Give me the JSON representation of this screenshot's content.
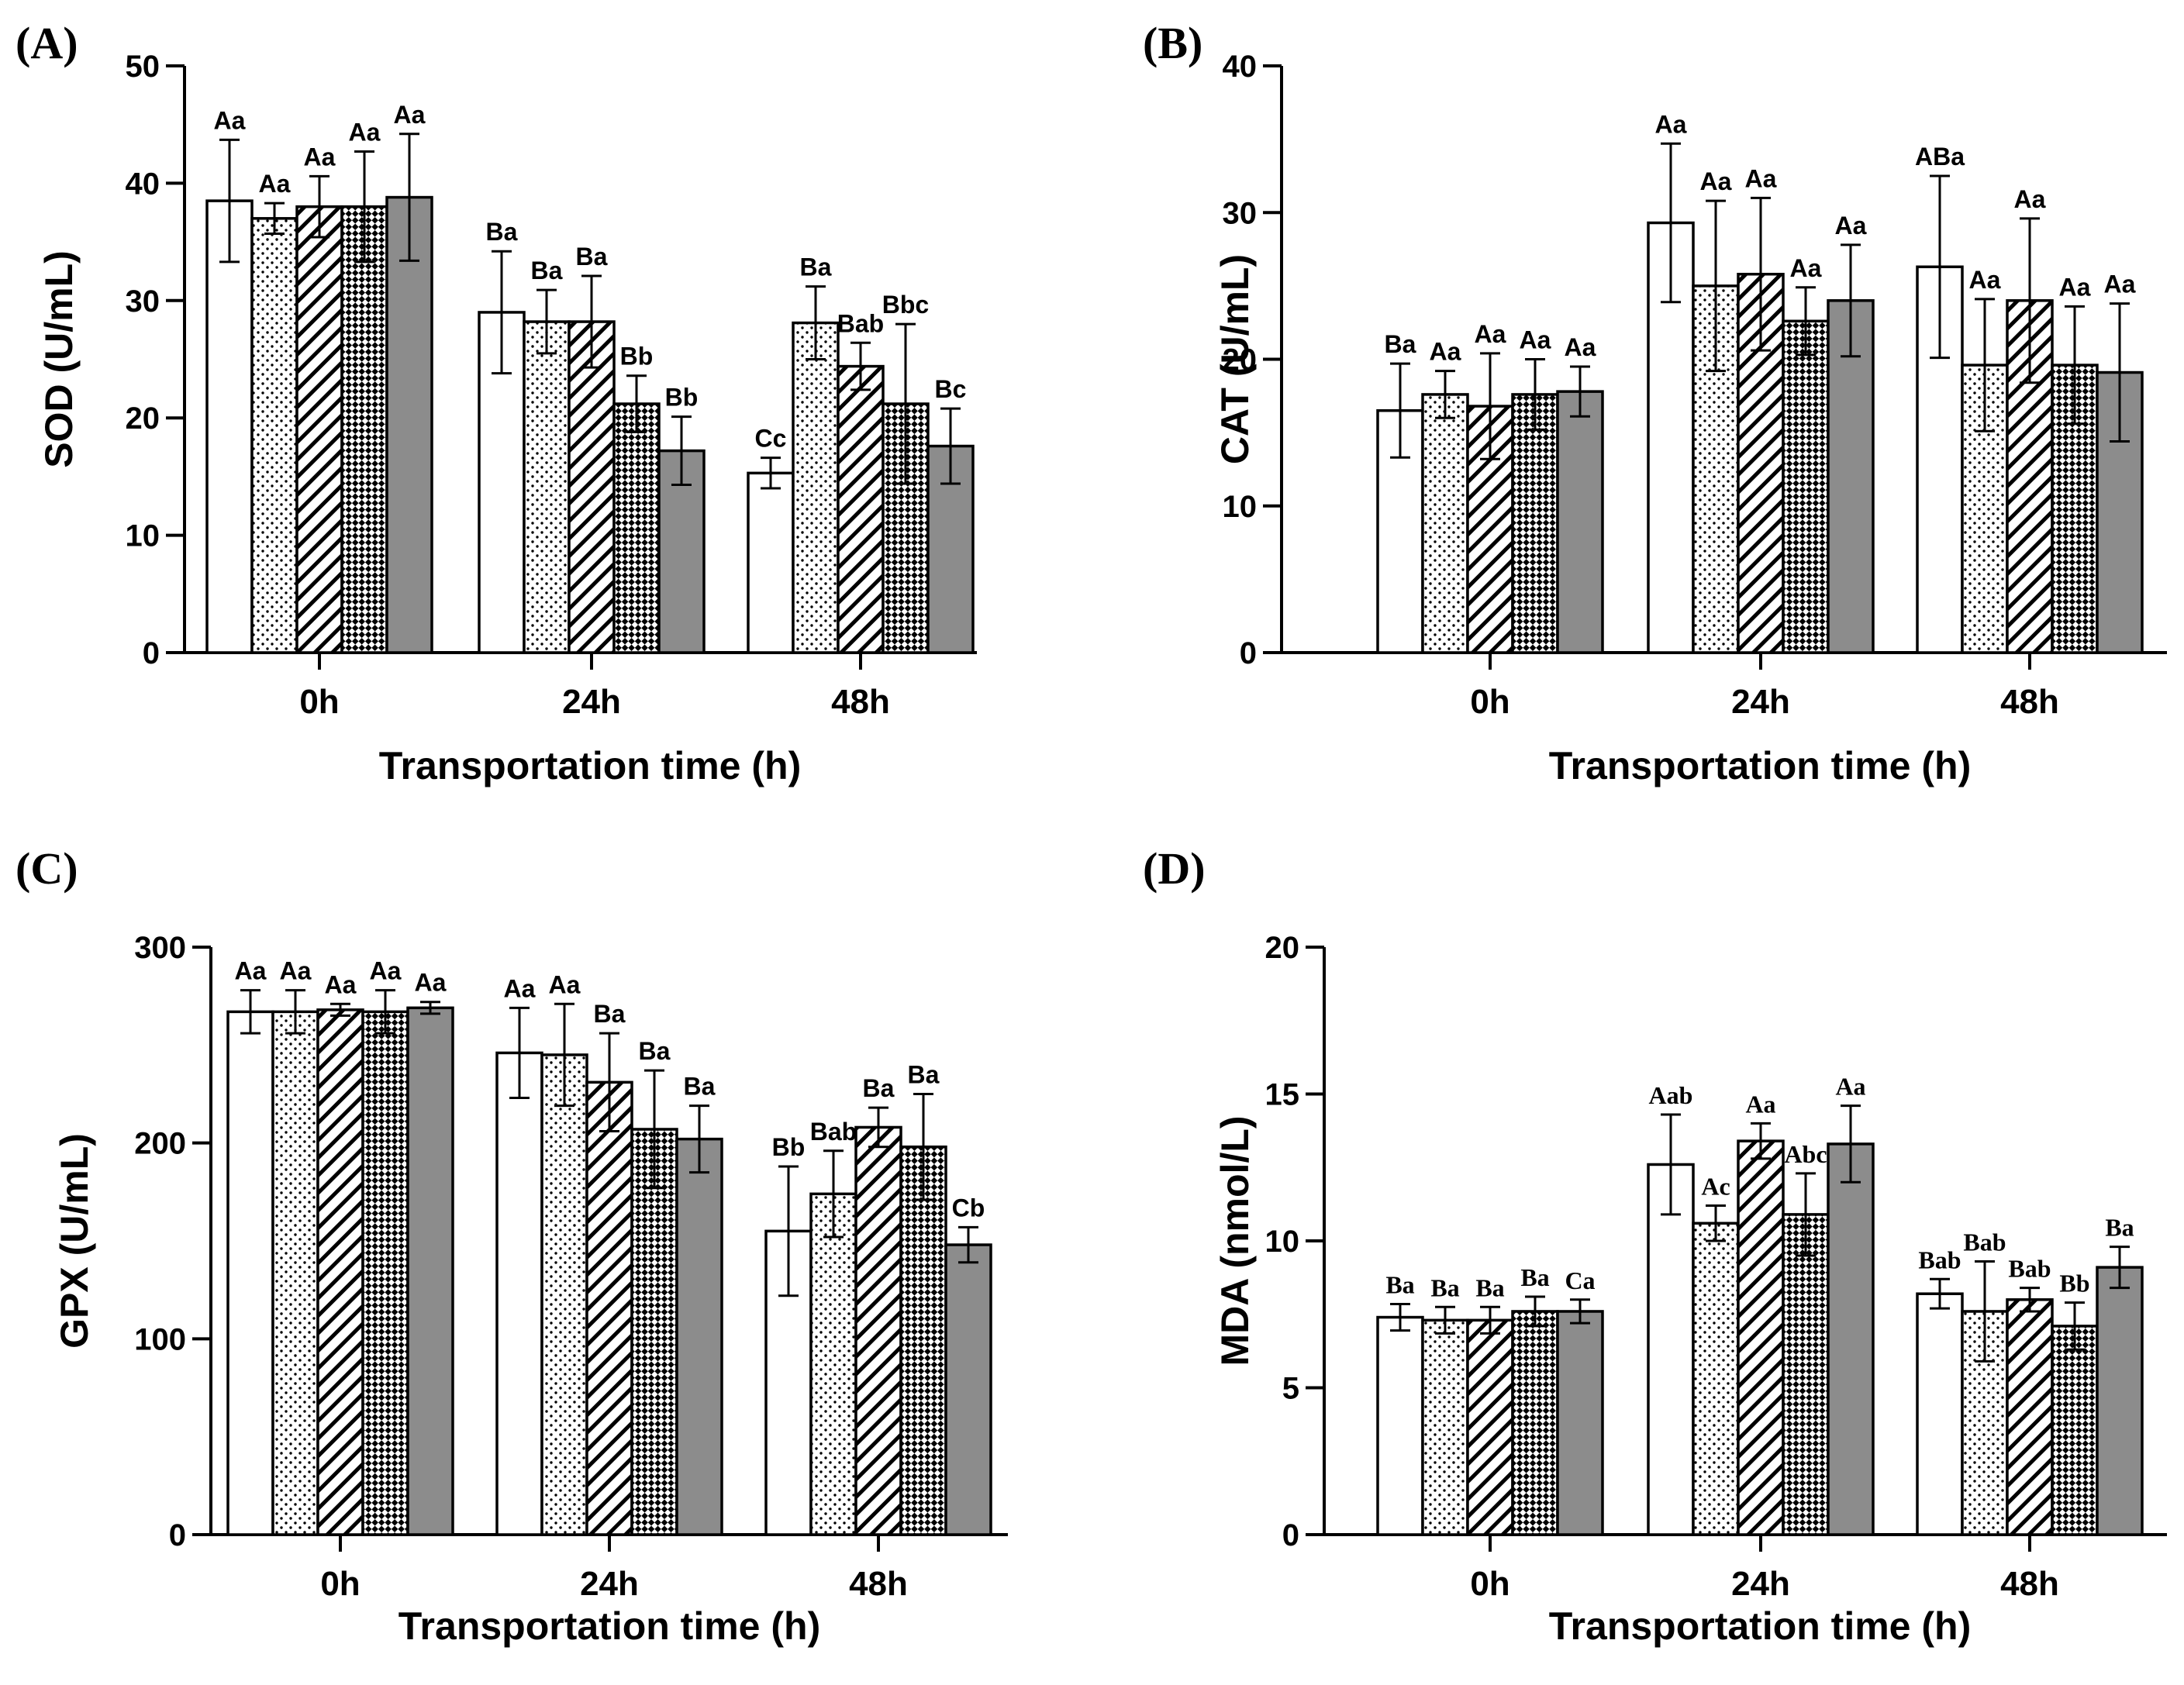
{
  "figure": {
    "legend": [],
    "series_styles": [
      {
        "fill": "#ffffff",
        "pattern": "none"
      },
      {
        "fill": "#ffffff",
        "pattern": "dots"
      },
      {
        "fill": "#ffffff",
        "pattern": "diagonal-hatch"
      },
      {
        "fill": "#ffffff",
        "pattern": "checkerboard"
      },
      {
        "fill": "#8c8c8c",
        "pattern": "none"
      }
    ]
  },
  "chart_data": [
    {
      "panel": "(A)",
      "type": "bar",
      "title": "",
      "xlabel": "Transportation time (h)",
      "ylabel": "SOD (U/mL)",
      "ylim": [
        0,
        50
      ],
      "yticks": [
        0,
        10,
        20,
        30,
        40,
        50
      ],
      "categories": [
        "0h",
        "24h",
        "48h"
      ],
      "label_font": "sans",
      "series": [
        {
          "values": [
            38.5,
            29.0,
            15.3
          ],
          "errors": [
            5.2,
            5.2,
            1.3
          ],
          "labels": [
            "Aa",
            "Ba",
            "Cc"
          ]
        },
        {
          "values": [
            37.0,
            28.2,
            28.1
          ],
          "errors": [
            1.3,
            2.7,
            3.1
          ],
          "labels": [
            "Aa",
            "Ba",
            "Ba"
          ]
        },
        {
          "values": [
            38.0,
            28.2,
            24.4
          ],
          "errors": [
            2.6,
            3.9,
            2.0
          ],
          "labels": [
            "Aa",
            "Ba",
            "Bab"
          ]
        },
        {
          "values": [
            38.0,
            21.2,
            21.2
          ],
          "errors": [
            4.7,
            2.4,
            6.8
          ],
          "labels": [
            "Aa",
            "Bb",
            "Bbc"
          ]
        },
        {
          "values": [
            38.8,
            17.2,
            17.6
          ],
          "errors": [
            5.4,
            2.9,
            3.2
          ],
          "labels": [
            "Aa",
            "Bb",
            "Bc"
          ]
        }
      ]
    },
    {
      "panel": "(B)",
      "type": "bar",
      "title": "",
      "xlabel": "Transportation time (h)",
      "ylabel": "CAT (U/mL)",
      "ylim": [
        0,
        40
      ],
      "yticks": [
        0,
        10,
        20,
        30,
        40
      ],
      "categories": [
        "0h",
        "24h",
        "48h"
      ],
      "label_font": "sans",
      "series": [
        {
          "values": [
            16.5,
            29.3,
            26.3
          ],
          "errors": [
            3.2,
            5.4,
            6.2
          ],
          "labels": [
            "Ba",
            "Aa",
            "ABa"
          ]
        },
        {
          "values": [
            17.6,
            25.0,
            19.6
          ],
          "errors": [
            1.6,
            5.8,
            4.5
          ],
          "labels": [
            "Aa",
            "Aa",
            "Aa"
          ]
        },
        {
          "values": [
            16.8,
            25.8,
            24.0
          ],
          "errors": [
            3.6,
            5.2,
            5.6
          ],
          "labels": [
            "Aa",
            "Aa",
            "Aa"
          ]
        },
        {
          "values": [
            17.6,
            22.6,
            19.6
          ],
          "errors": [
            2.4,
            2.3,
            4.0
          ],
          "labels": [
            "Aa",
            "Aa",
            "Aa"
          ]
        },
        {
          "values": [
            17.8,
            24.0,
            19.1
          ],
          "errors": [
            1.7,
            3.8,
            4.7
          ],
          "labels": [
            "Aa",
            "Aa",
            "Aa"
          ]
        }
      ]
    },
    {
      "panel": "(C)",
      "type": "bar",
      "title": "",
      "xlabel": "Transportation time (h)",
      "ylabel": "GPX (U/mL)",
      "ylim": [
        0,
        300
      ],
      "yticks": [
        0,
        100,
        200,
        300
      ],
      "categories": [
        "0h",
        "24h",
        "48h"
      ],
      "label_font": "sans",
      "series": [
        {
          "values": [
            267,
            246,
            155
          ],
          "errors": [
            11,
            23,
            33
          ],
          "labels": [
            "Aa",
            "Aa",
            "Bb"
          ]
        },
        {
          "values": [
            267,
            245,
            174
          ],
          "errors": [
            11,
            26,
            22
          ],
          "labels": [
            "Aa",
            "Aa",
            "Bab"
          ]
        },
        {
          "values": [
            268,
            231,
            208
          ],
          "errors": [
            3,
            25,
            10
          ],
          "labels": [
            "Aa",
            "Ba",
            "Ba"
          ]
        },
        {
          "values": [
            267,
            207,
            198
          ],
          "errors": [
            11,
            30,
            27
          ],
          "labels": [
            "Aa",
            "Ba",
            "Ba"
          ]
        },
        {
          "values": [
            269,
            202,
            148
          ],
          "errors": [
            3,
            17,
            9
          ],
          "labels": [
            "Aa",
            "Ba",
            "Cb"
          ]
        }
      ]
    },
    {
      "panel": "(D)",
      "type": "bar",
      "title": "",
      "xlabel": "Transportation time (h)",
      "ylabel": "MDA (nmol/L)",
      "ylim": [
        0,
        20
      ],
      "yticks": [
        0,
        5,
        10,
        15,
        20
      ],
      "categories": [
        "0h",
        "24h",
        "48h"
      ],
      "label_font": "serif",
      "series": [
        {
          "values": [
            7.4,
            12.6,
            8.2
          ],
          "errors": [
            0.45,
            1.7,
            0.5
          ],
          "labels": [
            "Ba",
            "Aab",
            "Bab"
          ]
        },
        {
          "values": [
            7.3,
            10.6,
            7.6
          ],
          "errors": [
            0.45,
            0.6,
            1.7
          ],
          "labels": [
            "Ba",
            "Ac",
            "Bab"
          ]
        },
        {
          "values": [
            7.3,
            13.4,
            8.0
          ],
          "errors": [
            0.45,
            0.6,
            0.4
          ],
          "labels": [
            "Ba",
            "Aa",
            "Bab"
          ]
        },
        {
          "values": [
            7.6,
            10.9,
            7.1
          ],
          "errors": [
            0.5,
            1.4,
            0.8
          ],
          "labels": [
            "Ba",
            "Abc",
            "Bb"
          ]
        },
        {
          "values": [
            7.6,
            13.3,
            9.1
          ],
          "errors": [
            0.4,
            1.3,
            0.7
          ],
          "labels": [
            "Ca",
            "Aa",
            "Ba"
          ]
        }
      ]
    }
  ]
}
